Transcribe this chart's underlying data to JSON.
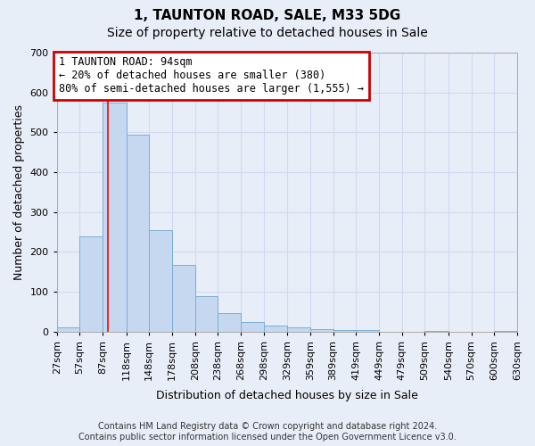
{
  "title": "1, TAUNTON ROAD, SALE, M33 5DG",
  "subtitle": "Size of property relative to detached houses in Sale",
  "xlabel": "Distribution of detached houses by size in Sale",
  "ylabel": "Number of detached properties",
  "footer_line1": "Contains HM Land Registry data © Crown copyright and database right 2024.",
  "footer_line2": "Contains public sector information licensed under the Open Government Licence v3.0.",
  "bin_edges": [
    27,
    57,
    87,
    118,
    148,
    178,
    208,
    238,
    268,
    298,
    329,
    359,
    389,
    419,
    449,
    479,
    509,
    540,
    570,
    600,
    630
  ],
  "bar_heights": [
    10,
    240,
    575,
    495,
    255,
    168,
    90,
    47,
    25,
    15,
    10,
    7,
    5,
    3,
    0,
    0,
    2,
    0,
    0,
    2
  ],
  "bar_color": "#c5d8f0",
  "bar_edge_color": "#7aaed6",
  "red_line_x": 94,
  "annotation_text": "1 TAUNTON ROAD: 94sqm\n← 20% of detached houses are smaller (380)\n80% of semi-detached houses are larger (1,555) →",
  "annotation_box_color": "#ffffff",
  "annotation_box_edge_color": "#cc0000",
  "ylim": [
    0,
    700
  ],
  "xlim": [
    27,
    630
  ],
  "grid_color": "#d0daf0",
  "background_color": "#e8eef8",
  "title_fontsize": 11,
  "subtitle_fontsize": 10,
  "label_fontsize": 9,
  "tick_fontsize": 8,
  "footer_fontsize": 7
}
